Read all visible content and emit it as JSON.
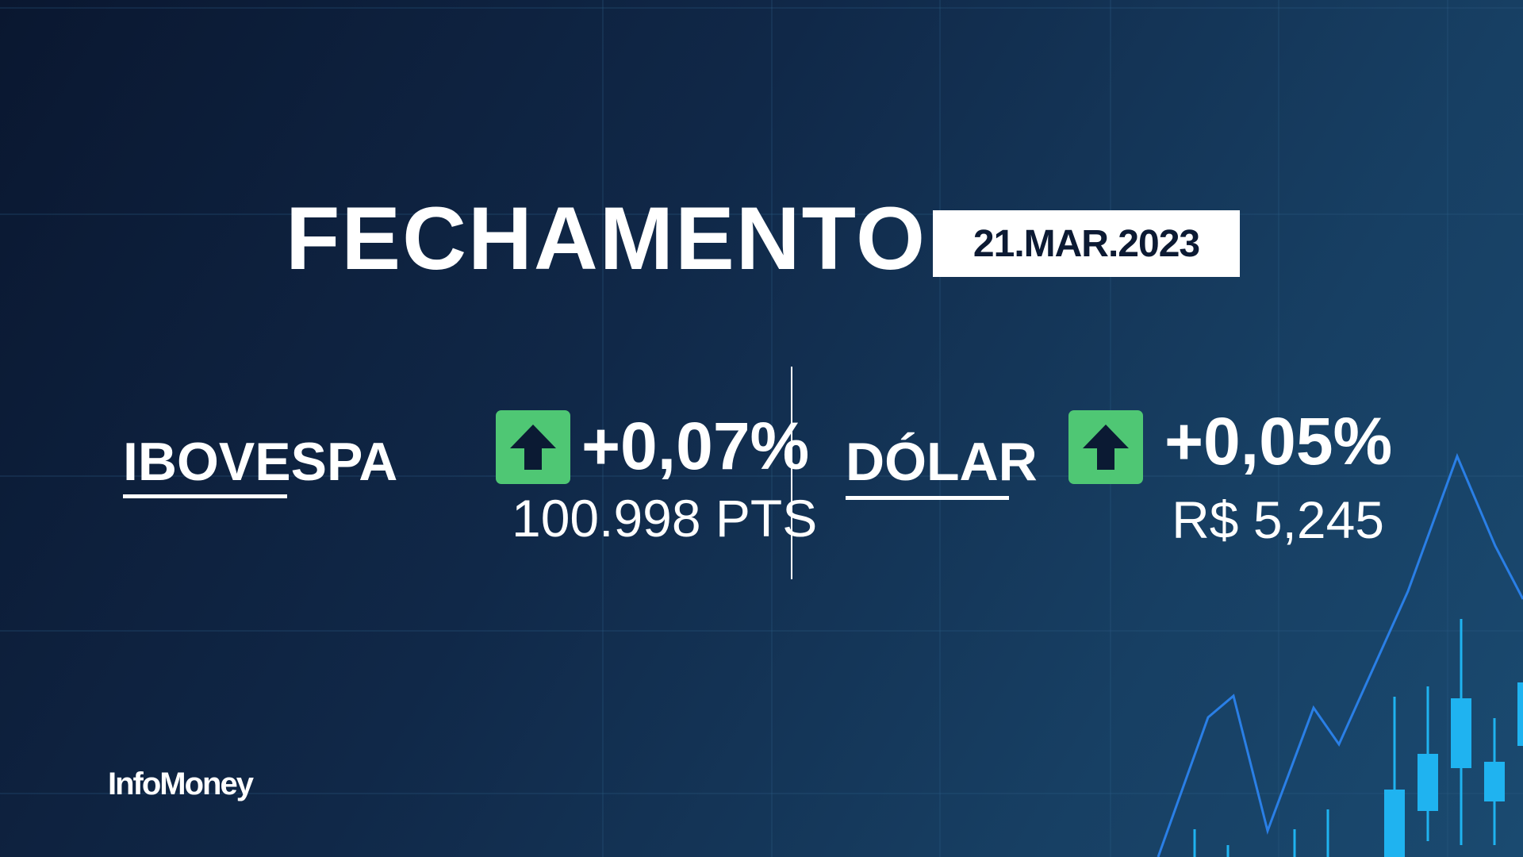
{
  "header": {
    "title": "FECHAMENTO",
    "date": "21.MAR.2023"
  },
  "ibovespa": {
    "label": "IBOVESPA",
    "change": "+0,07%",
    "value": "100.998 PTS",
    "direction": "up"
  },
  "dolar": {
    "label": "DÓLAR",
    "change": "+0,05%",
    "value": "R$ 5,245",
    "direction": "up"
  },
  "brand": {
    "logo": "InfoMoney"
  },
  "colors": {
    "up": "#4fc774",
    "arrow": "#0b1a33",
    "chart_line": "#2a7fe6",
    "candle": "#1fb3f0"
  },
  "icons": {
    "up": "arrow-up-icon"
  }
}
